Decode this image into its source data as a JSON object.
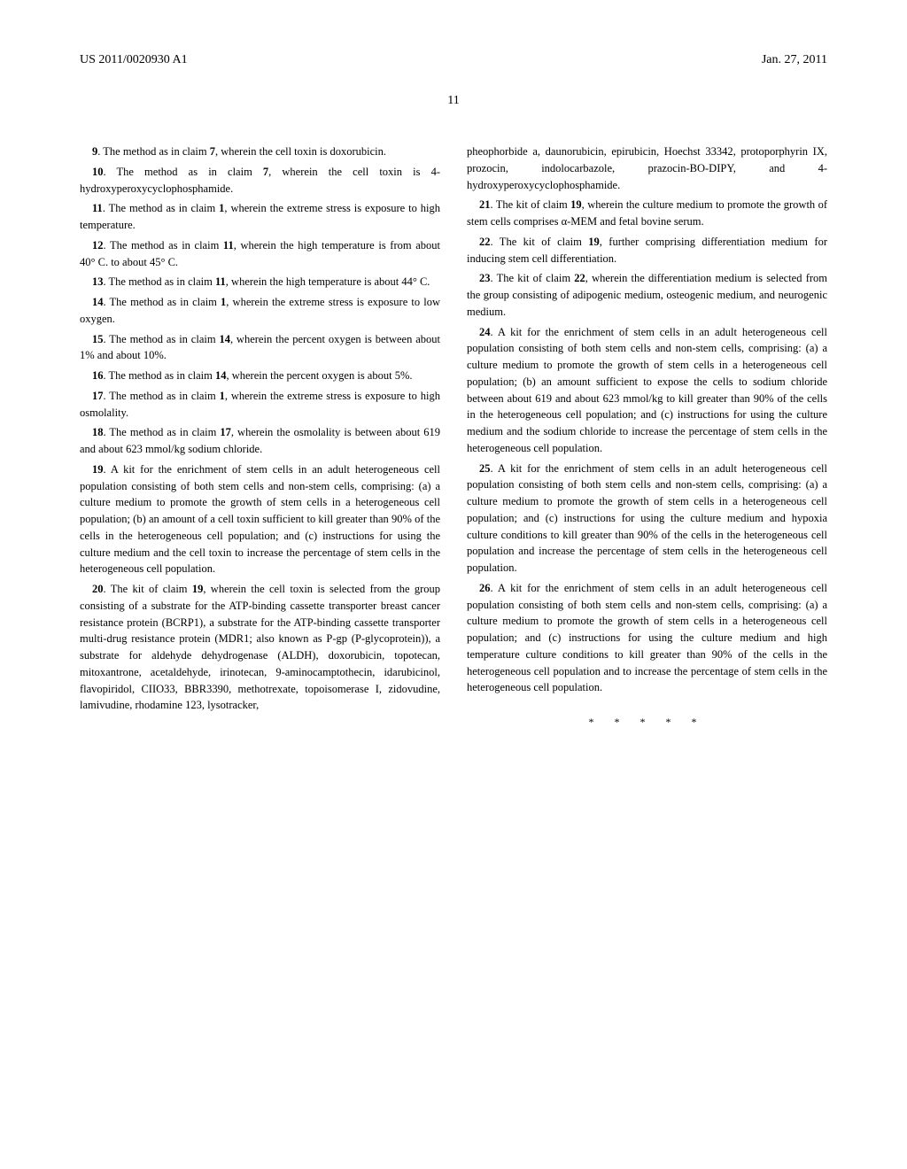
{
  "header": {
    "doc_number": "US 2011/0020930 A1",
    "date": "Jan. 27, 2011"
  },
  "page_number": "11",
  "left_column": {
    "claims": [
      {
        "num": "9",
        "text": ". The method as in claim ",
        "ref": "7",
        "rest": ", wherein the cell toxin is doxorubicin."
      },
      {
        "num": "10",
        "text": ". The method as in claim ",
        "ref": "7",
        "rest": ", wherein the cell toxin is 4-hydroxyperoxycyclophosphamide."
      },
      {
        "num": "11",
        "text": ". The method as in claim ",
        "ref": "1",
        "rest": ", wherein the extreme stress is exposure to high temperature."
      },
      {
        "num": "12",
        "text": ". The method as in claim ",
        "ref": "11",
        "rest": ", wherein the high temperature is from about 40° C. to about 45° C."
      },
      {
        "num": "13",
        "text": ". The method as in claim ",
        "ref": "11",
        "rest": ", wherein the high temperature is about 44° C."
      },
      {
        "num": "14",
        "text": ". The method as in claim ",
        "ref": "1",
        "rest": ", wherein the extreme stress is exposure to low oxygen."
      },
      {
        "num": "15",
        "text": ". The method as in claim ",
        "ref": "14",
        "rest": ", wherein the percent oxygen is between about 1% and about 10%."
      },
      {
        "num": "16",
        "text": ". The method as in claim ",
        "ref": "14",
        "rest": ", wherein the percent oxygen is about 5%."
      },
      {
        "num": "17",
        "text": ". The method as in claim ",
        "ref": "1",
        "rest": ", wherein the extreme stress is exposure to high osmolality."
      },
      {
        "num": "18",
        "text": ". The method as in claim ",
        "ref": "17",
        "rest": ", wherein the osmolality is between about 619 and about 623 mmol/kg sodium chloride."
      },
      {
        "num": "19",
        "text": ". A kit for the enrichment of stem cells in an adult heterogeneous cell population consisting of both stem cells and non-stem cells, comprising: (a) a culture medium to promote the growth of stem cells in a heterogeneous cell population; (b) an amount of a cell toxin sufficient to kill greater than 90% of the cells in the heterogeneous cell population; and (c) instructions for using the culture medium and the cell toxin to increase the percentage of stem cells in the heterogeneous cell population.",
        "ref": "",
        "rest": ""
      },
      {
        "num": "20",
        "text": ". The kit of claim ",
        "ref": "19",
        "rest": ", wherein the cell toxin is selected from the group consisting of a substrate for the ATP-binding cassette transporter breast cancer resistance protein (BCRP1), a substrate for the ATP-binding cassette transporter multi-drug resistance protein (MDR1; also known as P-gp (P-glycoprotein)), a substrate for aldehyde dehydrogenase (ALDH), doxorubicin, topotecan, mitoxantrone, acetaldehyde, irinotecan, 9-aminocamptothecin, idarubicinol, flavopiridol, CIIO33, BBR3390, methotrexate, topoisomerase I, zidovudine, lamivudine, rhodamine 123, lysotracker,"
      }
    ]
  },
  "right_column": {
    "continuation": "pheophorbide a, daunorubicin, epirubicin, Hoechst 33342, protoporphyrin IX, prozocin, indolocarbazole, prazocin-BO-DIPY, and 4-hydroxyperoxycyclophosphamide.",
    "claims": [
      {
        "num": "21",
        "text": ". The kit of claim ",
        "ref": "19",
        "rest": ", wherein the culture medium to promote the growth of stem cells comprises α-MEM and fetal bovine serum."
      },
      {
        "num": "22",
        "text": ". The kit of claim ",
        "ref": "19",
        "rest": ", further comprising differentiation medium for inducing stem cell differentiation."
      },
      {
        "num": "23",
        "text": ". The kit of claim ",
        "ref": "22",
        "rest": ", wherein the differentiation medium is selected from the group consisting of adipogenic medium, osteogenic medium, and neurogenic medium."
      },
      {
        "num": "24",
        "text": ". A kit for the enrichment of stem cells in an adult heterogeneous cell population consisting of both stem cells and non-stem cells, comprising: (a) a culture medium to promote the growth of stem cells in a heterogeneous cell population; (b) an amount sufficient to expose the cells to sodium chloride between about 619 and about 623 mmol/kg to kill greater than 90% of the cells in the heterogeneous cell population; and (c) instructions for using the culture medium and the sodium chloride to increase the percentage of stem cells in the heterogeneous cell population.",
        "ref": "",
        "rest": ""
      },
      {
        "num": "25",
        "text": ". A kit for the enrichment of stem cells in an adult heterogeneous cell population consisting of both stem cells and non-stem cells, comprising: (a) a culture medium to promote the growth of stem cells in a heterogeneous cell population; and (c) instructions for using the culture medium and hypoxia culture conditions to kill greater than 90% of the cells in the heterogeneous cell population and increase the percentage of stem cells in the heterogeneous cell population.",
        "ref": "",
        "rest": ""
      },
      {
        "num": "26",
        "text": ". A kit for the enrichment of stem cells in an adult heterogeneous cell population consisting of both stem cells and non-stem cells, comprising: (a) a culture medium to promote the growth of stem cells in a heterogeneous cell population; and (c) instructions for using the culture medium and high temperature culture conditions to kill greater than 90% of the cells in the heterogeneous cell population and to increase the percentage of stem cells in the heterogeneous cell population.",
        "ref": "",
        "rest": ""
      }
    ]
  },
  "end_marks": "* * * * *"
}
